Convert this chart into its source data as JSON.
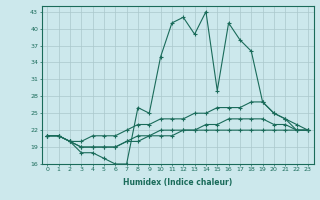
{
  "xlabel": "Humidex (Indice chaleur)",
  "x_values": [
    0,
    1,
    2,
    3,
    4,
    5,
    6,
    7,
    8,
    9,
    10,
    11,
    12,
    13,
    14,
    15,
    16,
    17,
    18,
    19,
    20,
    21,
    22,
    23
  ],
  "lines": [
    [
      21,
      21,
      20,
      18,
      18,
      17,
      16,
      16,
      26,
      25,
      35,
      41,
      42,
      39,
      43,
      29,
      41,
      38,
      36,
      27,
      25,
      24,
      22,
      22
    ],
    [
      21,
      21,
      20,
      20,
      21,
      21,
      21,
      22,
      23,
      23,
      24,
      24,
      24,
      25,
      25,
      26,
      26,
      26,
      27,
      27,
      25,
      24,
      23,
      22
    ],
    [
      21,
      21,
      20,
      19,
      19,
      19,
      19,
      20,
      21,
      21,
      22,
      22,
      22,
      22,
      23,
      23,
      24,
      24,
      24,
      24,
      23,
      23,
      22,
      22
    ],
    [
      21,
      21,
      20,
      19,
      19,
      19,
      19,
      20,
      20,
      21,
      21,
      21,
      22,
      22,
      22,
      22,
      22,
      22,
      22,
      22,
      22,
      22,
      22,
      22
    ]
  ],
  "line_color": "#1a6b5a",
  "bg_color": "#cce8ec",
  "grid_color": "#aac8cc",
  "ylim": [
    16,
    44
  ],
  "yticks": [
    16,
    19,
    22,
    25,
    28,
    31,
    34,
    37,
    40,
    43
  ],
  "xlim": [
    -0.5,
    23.5
  ],
  "xticks": [
    0,
    1,
    2,
    3,
    4,
    5,
    6,
    7,
    8,
    9,
    10,
    11,
    12,
    13,
    14,
    15,
    16,
    17,
    18,
    19,
    20,
    21,
    22,
    23
  ]
}
